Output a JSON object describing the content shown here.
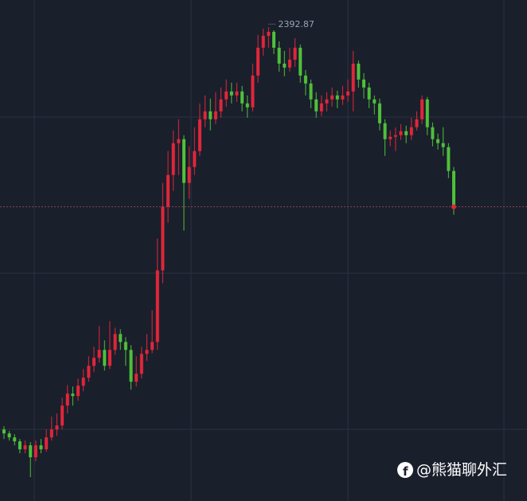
{
  "chart_data": {
    "type": "candlestick",
    "open": [
      2140,
      2137.5,
      2135,
      2132.5,
      2127.5,
      2130,
      2122.5,
      2130,
      2127.5,
      2135,
      2140,
      2142.5,
      2155,
      2162.5,
      2161,
      2167.5,
      2172.5,
      2180,
      2185,
      2190,
      2180,
      2190,
      2200,
      2195,
      2190,
      2170,
      2175,
      2187.5,
      2190,
      2195,
      2240,
      2280,
      2300,
      2320,
      2322.5,
      2295,
      2305,
      2315,
      2335,
      2340,
      2335,
      2340,
      2347.5,
      2352.5,
      2350,
      2352.5,
      2345,
      2342.5,
      2362.5,
      2380,
      2387.5,
      2390,
      2380,
      2370,
      2367.5,
      2372.5,
      2380,
      2362.5,
      2357.5,
      2347.5,
      2340,
      2345,
      2347.5,
      2350,
      2347.5,
      2350,
      2352.5,
      2370,
      2360,
      2355,
      2347.5,
      2345,
      2332.5,
      2322.5,
      2324,
      2325,
      2327.5,
      2325,
      2330,
      2335,
      2347.5,
      2330,
      2322.5,
      2320,
      2317.5,
      2302.5
    ],
    "high": [
      2142,
      2139,
      2137,
      2134,
      2133,
      2132,
      2133,
      2134,
      2140,
      2148,
      2150,
      2160,
      2168,
      2167,
      2172,
      2178,
      2186,
      2192,
      2205,
      2196,
      2208,
      2204,
      2203,
      2198,
      2193,
      2186,
      2192,
      2200,
      2215,
      2260,
      2295,
      2315,
      2328,
      2335,
      2325,
      2318,
      2330,
      2345,
      2350,
      2348,
      2352,
      2355,
      2360,
      2358,
      2358,
      2356,
      2350,
      2370,
      2388,
      2392,
      2392.87,
      2391,
      2384,
      2378,
      2380,
      2386,
      2382,
      2366,
      2360,
      2352,
      2350,
      2352,
      2355,
      2353,
      2356,
      2360,
      2378,
      2372,
      2364,
      2358,
      2350,
      2348,
      2335,
      2328,
      2330,
      2332,
      2331,
      2336,
      2340,
      2350,
      2349,
      2333,
      2326,
      2330,
      2320,
      2305
    ],
    "low": [
      2134,
      2133,
      2130,
      2125,
      2125,
      2110,
      2120,
      2125,
      2126,
      2133,
      2136,
      2140,
      2150,
      2155,
      2158,
      2164,
      2170,
      2176,
      2182,
      2177,
      2178,
      2187,
      2190,
      2180,
      2165,
      2167,
      2172,
      2183,
      2188,
      2190,
      2232,
      2270,
      2290,
      2300,
      2265,
      2285,
      2300,
      2312,
      2330,
      2328,
      2332,
      2336,
      2343,
      2345,
      2346,
      2340,
      2336,
      2340,
      2358,
      2375,
      2380,
      2376,
      2365,
      2362,
      2365,
      2368,
      2358,
      2350,
      2342,
      2336,
      2337,
      2340,
      2343,
      2342,
      2344,
      2346,
      2340,
      2355,
      2348,
      2342,
      2338,
      2328,
      2312,
      2318,
      2315,
      2322,
      2320,
      2322,
      2328,
      2332,
      2325,
      2318,
      2316,
      2312,
      2298,
      2275
    ],
    "close": [
      2137.5,
      2135,
      2132.5,
      2127.5,
      2130,
      2122.5,
      2130,
      2127.5,
      2135,
      2140,
      2142.5,
      2155,
      2162.5,
      2161,
      2167.5,
      2172.5,
      2180,
      2185,
      2190,
      2180,
      2190,
      2200,
      2195,
      2190,
      2170,
      2175,
      2187.5,
      2190,
      2195,
      2240,
      2280,
      2300,
      2320,
      2322.5,
      2295,
      2305,
      2315,
      2335,
      2340,
      2335,
      2340,
      2347.5,
      2352.5,
      2350,
      2352.5,
      2345,
      2342.5,
      2362.5,
      2380,
      2387.5,
      2390,
      2380,
      2370,
      2367.5,
      2372.5,
      2380,
      2362.5,
      2357.5,
      2347.5,
      2340,
      2345,
      2347.5,
      2350,
      2347.5,
      2350,
      2352.5,
      2370,
      2360,
      2355,
      2347.5,
      2345,
      2332.5,
      2322.5,
      2324,
      2325,
      2327.5,
      2325,
      2330,
      2335,
      2347.5,
      2330,
      2322.5,
      2320,
      2317.5,
      2302.5,
      2280
    ],
    "up_color": "#e0263a",
    "down_color": "#4fbf3a",
    "ylim": [
      2095,
      2410
    ],
    "watermark": "@熊猫聊外汇"
  }
}
